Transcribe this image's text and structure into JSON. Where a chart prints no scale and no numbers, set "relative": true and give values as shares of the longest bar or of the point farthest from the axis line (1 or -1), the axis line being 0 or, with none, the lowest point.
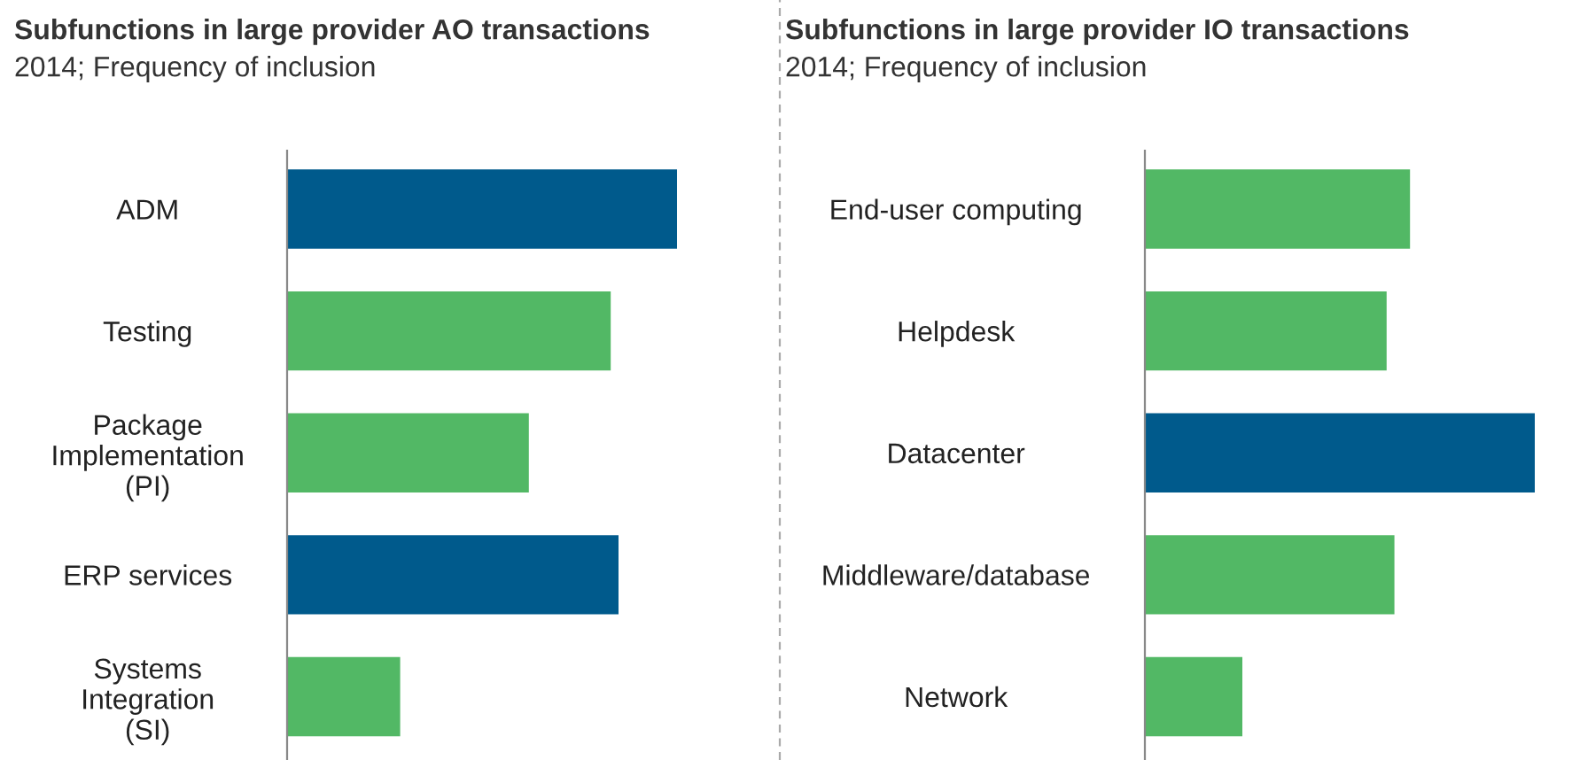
{
  "chart_data": [
    {
      "type": "bar",
      "orientation": "horizontal",
      "relative": true,
      "title": "Subfunctions in large provider AO transactions",
      "subtitle": "2014; Frequency of inclusion",
      "categories": [
        "ADM",
        "Testing",
        "Package\nImplementation\n(PI)",
        "ERP services",
        "Systems\nIntegration\n(SI)"
      ],
      "values": [
        1,
        0.83,
        0.62,
        0.85,
        0.29
      ],
      "colors": [
        "#005a8c",
        "#52b865",
        "#52b865",
        "#005a8c",
        "#52b865"
      ],
      "grid": false,
      "legend": false
    },
    {
      "type": "bar",
      "orientation": "horizontal",
      "relative": true,
      "title": "Subfunctions in large provider IO transactions",
      "subtitle": "2014; Frequency of inclusion",
      "categories": [
        "End-user computing",
        "Helpdesk",
        "Datacenter",
        "Middleware/database",
        "Network"
      ],
      "values": [
        0.68,
        0.62,
        1,
        0.64,
        0.25
      ],
      "colors": [
        "#52b865",
        "#52b865",
        "#005a8c",
        "#52b865",
        "#52b865"
      ],
      "grid": false,
      "legend": false
    }
  ]
}
